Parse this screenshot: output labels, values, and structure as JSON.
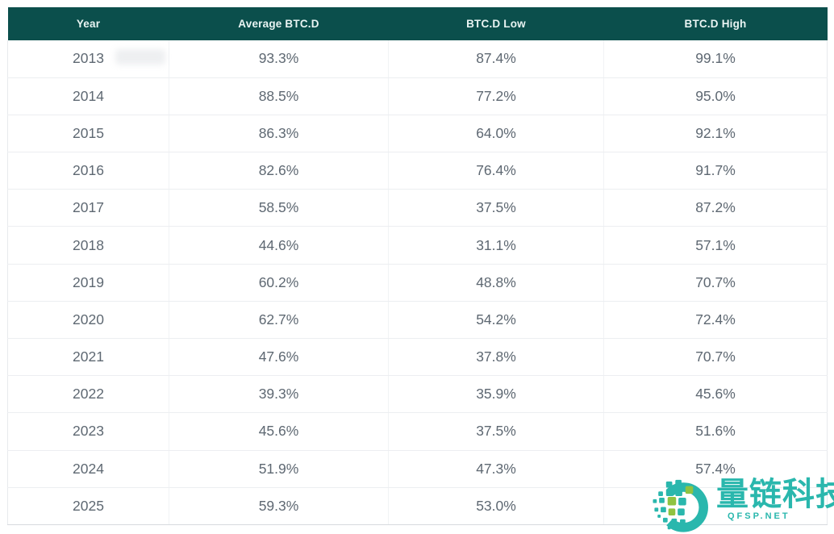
{
  "chart_data": {
    "type": "table",
    "columns": [
      "Year",
      "Average BTC.D",
      "BTC.D Low",
      "BTC.D High"
    ],
    "rows": [
      [
        "2013",
        "93.3%",
        "87.4%",
        "99.1%"
      ],
      [
        "2014",
        "88.5%",
        "77.2%",
        "95.0%"
      ],
      [
        "2015",
        "86.3%",
        "64.0%",
        "92.1%"
      ],
      [
        "2016",
        "82.6%",
        "76.4%",
        "91.7%"
      ],
      [
        "2017",
        "58.5%",
        "37.5%",
        "87.2%"
      ],
      [
        "2018",
        "44.6%",
        "31.1%",
        "57.1%"
      ],
      [
        "2019",
        "60.2%",
        "48.8%",
        "70.7%"
      ],
      [
        "2020",
        "62.7%",
        "54.2%",
        "72.4%"
      ],
      [
        "2021",
        "47.6%",
        "37.8%",
        "70.7%"
      ],
      [
        "2022",
        "39.3%",
        "35.9%",
        "45.6%"
      ],
      [
        "2023",
        "45.6%",
        "37.5%",
        "51.6%"
      ],
      [
        "2024",
        "51.9%",
        "47.3%",
        "57.4%"
      ],
      [
        "2025",
        "59.3%",
        "53.0%",
        ""
      ]
    ],
    "title": "",
    "layout": "header row dark teal, body rows white, values centered"
  },
  "watermark": {
    "brand": "量链科技",
    "domain": "QFSP.NET"
  },
  "colors": {
    "header_bg": "#0B4F4C",
    "header_text": "#E9F4F3",
    "cell_text": "#5E6872",
    "row_border": "#ECEEF1",
    "watermark_teal": "#2AB7AD",
    "watermark_green": "#8FC341"
  }
}
